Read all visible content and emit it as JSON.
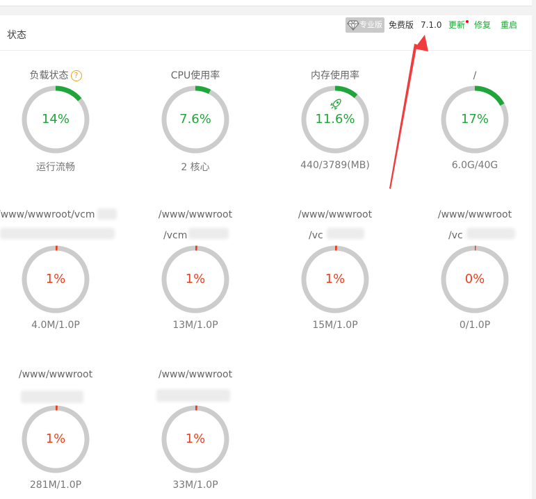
{
  "header": {
    "title": "状态",
    "pro_badge": "专业版",
    "free_label": "免费版",
    "version": "7.1.0",
    "update": "更新",
    "repair": "修复",
    "restart": "重启"
  },
  "gauges": [
    {
      "label": "负载状态",
      "value": "14%",
      "sub": "运行流畅",
      "level": 0.14
    },
    {
      "label": "CPU使用率",
      "value": "7.6%",
      "sub": "2 核心",
      "level": 0.076
    },
    {
      "label": "内存使用率",
      "value": "11.6%",
      "sub": "440/3789(MB)",
      "level": 0.116
    },
    {
      "label": "/",
      "value": "17%",
      "sub": "6.0G/40G",
      "level": 0.17
    }
  ],
  "disks_row2": [
    {
      "path": "/www/wwwroot/vcm",
      "path2": "",
      "value": "1%",
      "sub": "4.0M/1.0P",
      "level": 0.01
    },
    {
      "path": "/www/wwwroot",
      "path2": "/vcm",
      "value": "1%",
      "sub": "13M/1.0P",
      "level": 0.01
    },
    {
      "path": "/www/wwwroot",
      "path2": "/vc",
      "value": "1%",
      "sub": "15M/1.0P",
      "level": 0.01
    },
    {
      "path": "/www/wwwroot",
      "path2": "/vc",
      "value": "0%",
      "sub": "0/1.0P",
      "level": 0.0
    }
  ],
  "disks_row3": [
    {
      "path": "/www/wwwroot",
      "value": "1%",
      "sub": "281M/1.0P",
      "level": 0.01
    },
    {
      "path": "/www/wwwroot",
      "value": "1%",
      "sub": "33M/1.0P",
      "level": 0.01
    }
  ],
  "colors": {
    "ok": "#20a53a",
    "warn": "#e8401e",
    "track": "#cccccc",
    "annotation_arrow": "#f03c3c"
  },
  "icons": {
    "pro": "diamond-icon",
    "help": "help-circle-icon",
    "memory": "rocket-icon"
  }
}
